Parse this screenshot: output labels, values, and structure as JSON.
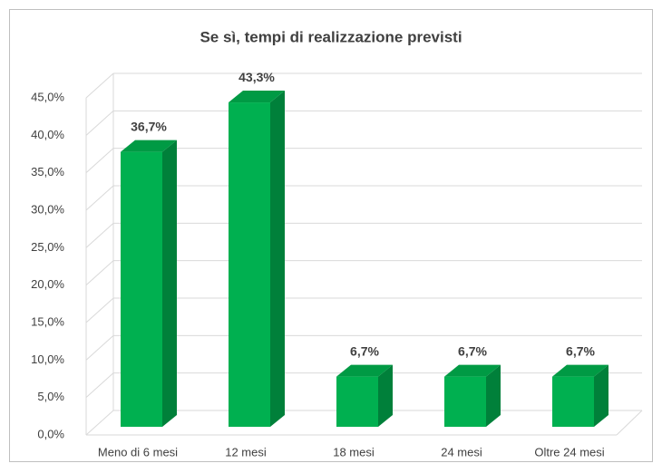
{
  "chart_data": {
    "type": "bar3d",
    "title": "Se sì, tempi di realizzazione previsti",
    "categories": [
      "Meno di 6 mesi",
      "12 mesi",
      "18 mesi",
      "24 mesi",
      "Oltre 24 mesi"
    ],
    "values": [
      36.7,
      43.3,
      6.7,
      6.7,
      6.7
    ],
    "value_labels": [
      "36,7%",
      "43,3%",
      "6,7%",
      "6,7%",
      "6,7%"
    ],
    "color": "#00b050",
    "ylim": [
      0,
      45
    ],
    "yticks": [
      {
        "value": 0,
        "label": "0,0%"
      },
      {
        "value": 5,
        "label": "5,0%"
      },
      {
        "value": 10,
        "label": "10,0%"
      },
      {
        "value": 15,
        "label": "15,0%"
      },
      {
        "value": 20,
        "label": "20,0%"
      },
      {
        "value": 25,
        "label": "25,0%"
      },
      {
        "value": 30,
        "label": "30,0%"
      },
      {
        "value": 35,
        "label": "35,0%"
      },
      {
        "value": 40,
        "label": "40,0%"
      },
      {
        "value": 45,
        "label": "45,0%"
      }
    ],
    "grid": true
  }
}
